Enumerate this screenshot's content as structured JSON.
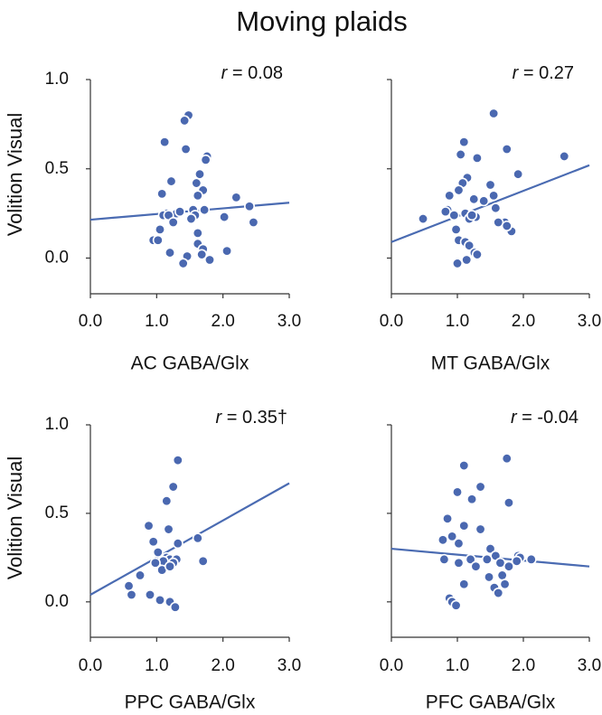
{
  "figure_title": "Moving plaids",
  "colors": {
    "point": "#4a68b0",
    "fit_line": "#4a6bb2",
    "axis": "#333333"
  },
  "chart_data": [
    {
      "type": "scatter",
      "id": "ac",
      "title": "",
      "xlabel": "AC GABA/Glx",
      "ylabel": "Volition Visual",
      "r_prefix": "r",
      "r_text": " = 0.08",
      "xlim": [
        0,
        3
      ],
      "ylim": [
        -0.2,
        1.0
      ],
      "xticks": [
        "0.0",
        "1.0",
        "2.0",
        "3.0"
      ],
      "yticks": [
        "1.0",
        "0.5",
        "0.0"
      ],
      "x": [
        1.48,
        1.42,
        1.12,
        1.44,
        1.76,
        1.74,
        1.65,
        1.22,
        1.6,
        1.7,
        1.62,
        1.08,
        1.55,
        1.15,
        1.3,
        1.1,
        1.18,
        2.2,
        1.72,
        2.4,
        1.58,
        1.35,
        1.25,
        1.05,
        2.46,
        1.52,
        1.62,
        0.95,
        1.02,
        2.02,
        1.62,
        1.7,
        1.2,
        1.68,
        1.46,
        2.06,
        1.8,
        1.4
      ],
      "y": [
        0.8,
        0.77,
        0.65,
        0.61,
        0.57,
        0.55,
        0.47,
        0.43,
        0.42,
        0.38,
        0.35,
        0.36,
        0.27,
        0.25,
        0.25,
        0.24,
        0.24,
        0.34,
        0.27,
        0.29,
        0.24,
        0.26,
        0.2,
        0.16,
        0.2,
        0.22,
        0.14,
        0.1,
        0.1,
        0.23,
        0.08,
        0.05,
        0.03,
        0.02,
        0.01,
        0.04,
        -0.01,
        -0.03
      ],
      "fit": {
        "x": [
          0.0,
          3.0
        ],
        "y": [
          0.215,
          0.31
        ]
      }
    },
    {
      "type": "scatter",
      "id": "mt",
      "title": "",
      "xlabel": "MT GABA/Glx",
      "ylabel": "",
      "r_prefix": "r",
      "r_text": " = 0.27",
      "xlim": [
        0,
        3
      ],
      "ylim": [
        -0.2,
        1.0
      ],
      "xticks": [
        "0.0",
        "1.0",
        "2.0",
        "3.0"
      ],
      "yticks": [],
      "x": [
        1.55,
        1.1,
        1.75,
        1.05,
        1.3,
        2.62,
        1.92,
        1.15,
        1.08,
        0.88,
        1.5,
        1.55,
        1.02,
        0.85,
        1.25,
        1.4,
        1.28,
        1.12,
        0.82,
        1.58,
        1.18,
        1.22,
        0.98,
        1.72,
        0.95,
        0.48,
        1.82,
        1.62,
        1.75,
        1.02,
        1.12,
        1.18,
        1.26,
        1.3,
        1.14,
        1.0
      ],
      "y": [
        0.81,
        0.65,
        0.61,
        0.58,
        0.56,
        0.57,
        0.47,
        0.45,
        0.42,
        0.35,
        0.41,
        0.35,
        0.38,
        0.27,
        0.33,
        0.32,
        0.23,
        0.25,
        0.26,
        0.28,
        0.22,
        0.24,
        0.16,
        0.2,
        0.24,
        0.22,
        0.15,
        0.2,
        0.18,
        0.1,
        0.09,
        0.07,
        0.03,
        0.02,
        -0.01,
        -0.03
      ],
      "fit": {
        "x": [
          0.0,
          3.0
        ],
        "y": [
          0.09,
          0.52
        ]
      }
    },
    {
      "type": "scatter",
      "id": "ppc",
      "title": "",
      "xlabel": "PPC GABA/Glx",
      "ylabel": "Volition Visual",
      "r_prefix": "r",
      "r_text": " = 0.35†",
      "xlim": [
        0,
        3
      ],
      "ylim": [
        -0.2,
        1.0
      ],
      "xticks": [
        "0.0",
        "1.0",
        "2.0",
        "3.0"
      ],
      "yticks": [
        "1.0",
        "0.5",
        "0.0"
      ],
      "x": [
        1.32,
        1.25,
        1.15,
        0.88,
        1.18,
        1.62,
        0.95,
        1.32,
        1.02,
        1.15,
        1.2,
        1.3,
        1.1,
        1.25,
        1.7,
        0.98,
        1.08,
        1.2,
        0.75,
        0.58,
        0.62,
        0.9,
        1.05,
        1.2,
        1.28
      ],
      "y": [
        0.8,
        0.65,
        0.57,
        0.43,
        0.41,
        0.36,
        0.34,
        0.33,
        0.28,
        0.25,
        0.24,
        0.24,
        0.23,
        0.22,
        0.23,
        0.22,
        0.18,
        0.2,
        0.15,
        0.09,
        0.04,
        0.04,
        0.01,
        -0.0,
        -0.03
      ],
      "fit": {
        "x": [
          0.0,
          3.0
        ],
        "y": [
          0.04,
          0.67
        ]
      }
    },
    {
      "type": "scatter",
      "id": "pfc",
      "title": "",
      "xlabel": "PFC GABA/Glx",
      "ylabel": "",
      "r_prefix": "r",
      "r_text": " = -0.04",
      "xlim": [
        0,
        3
      ],
      "ylim": [
        -0.2,
        1.0
      ],
      "xticks": [
        "0.0",
        "1.0",
        "2.0",
        "3.0"
      ],
      "yticks": [],
      "x": [
        1.75,
        1.1,
        1.35,
        1.0,
        1.22,
        1.78,
        0.85,
        1.1,
        1.35,
        0.78,
        1.5,
        0.92,
        1.02,
        1.92,
        1.58,
        1.2,
        1.95,
        0.8,
        1.45,
        1.28,
        1.65,
        2.12,
        1.02,
        1.78,
        1.68,
        1.48,
        1.72,
        1.9,
        1.1,
        1.56,
        1.62,
        0.88,
        0.92,
        0.98
      ],
      "y": [
        0.81,
        0.77,
        0.65,
        0.62,
        0.58,
        0.56,
        0.47,
        0.43,
        0.41,
        0.35,
        0.3,
        0.37,
        0.33,
        0.26,
        0.26,
        0.24,
        0.25,
        0.24,
        0.24,
        0.2,
        0.22,
        0.24,
        0.22,
        0.2,
        0.15,
        0.14,
        0.1,
        0.23,
        0.1,
        0.08,
        0.05,
        0.02,
        -0.0,
        -0.02
      ],
      "fit": {
        "x": [
          0.0,
          3.0
        ],
        "y": [
          0.3,
          0.2
        ]
      }
    }
  ]
}
